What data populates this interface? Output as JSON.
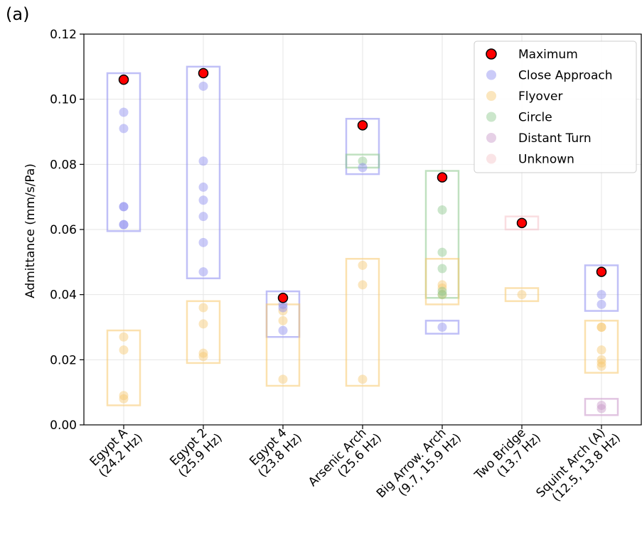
{
  "panel_label": "(a)",
  "chart_data": {
    "type": "scatter",
    "title": "",
    "xlabel": "",
    "ylabel": "Admittance (mm/s/Pa)",
    "ylim": [
      0,
      0.12
    ],
    "yticks": [
      "0.00",
      "0.02",
      "0.04",
      "0.06",
      "0.08",
      "0.10",
      "0.12"
    ],
    "grid": true,
    "legend_position": "top-right",
    "categories": [
      {
        "line1": "Egypt A",
        "line2": "(24.2 Hz)"
      },
      {
        "line1": "Egypt 2",
        "line2": "(25.9 Hz)"
      },
      {
        "line1": "Egypt 4",
        "line2": "(23.8 Hz)"
      },
      {
        "line1": "Arsenic Arch",
        "line2": "(25.6 Hz)"
      },
      {
        "line1": "Big Arrow. Arch",
        "line2": "(9.7, 15.9 Hz)"
      },
      {
        "line1": "Two Bridge",
        "line2": "(13.7 Hz)"
      },
      {
        "line1": "Squint Arch (A)",
        "line2": "(12.5, 13.8 Hz)"
      }
    ],
    "series": [
      {
        "name": "Maximum",
        "color": "#ff0000",
        "marker": "max",
        "points": [
          [
            0,
            0.106
          ],
          [
            1,
            0.108
          ],
          [
            2,
            0.039
          ],
          [
            3,
            0.092
          ],
          [
            4,
            0.076
          ],
          [
            5,
            0.062
          ],
          [
            6,
            0.047
          ]
        ]
      },
      {
        "name": "Close Approach",
        "color": "#8c8cf0",
        "marker": "dot",
        "points": [
          [
            0,
            0.096
          ],
          [
            0,
            0.091
          ],
          [
            0,
            0.067
          ],
          [
            0,
            0.067
          ],
          [
            0,
            0.0615
          ],
          [
            0,
            0.0615
          ],
          [
            1,
            0.104
          ],
          [
            1,
            0.081
          ],
          [
            1,
            0.073
          ],
          [
            1,
            0.069
          ],
          [
            1,
            0.064
          ],
          [
            1,
            0.056
          ],
          [
            1,
            0.047
          ],
          [
            2,
            0.037
          ],
          [
            2,
            0.036
          ],
          [
            2,
            0.029
          ],
          [
            3,
            0.079
          ],
          [
            4,
            0.03
          ],
          [
            6,
            0.04
          ],
          [
            6,
            0.037
          ]
        ]
      },
      {
        "name": "Flyover",
        "color": "#f7c86e",
        "marker": "dot",
        "points": [
          [
            0,
            0.027
          ],
          [
            0,
            0.023
          ],
          [
            0,
            0.009
          ],
          [
            0,
            0.008
          ],
          [
            1,
            0.036
          ],
          [
            1,
            0.031
          ],
          [
            1,
            0.022
          ],
          [
            1,
            0.021
          ],
          [
            2,
            0.035
          ],
          [
            2,
            0.032
          ],
          [
            2,
            0.014
          ],
          [
            3,
            0.049
          ],
          [
            3,
            0.043
          ],
          [
            3,
            0.014
          ],
          [
            4,
            0.043
          ],
          [
            4,
            0.042
          ],
          [
            4,
            0.04
          ],
          [
            5,
            0.04
          ],
          [
            6,
            0.03
          ],
          [
            6,
            0.03
          ],
          [
            6,
            0.023
          ],
          [
            6,
            0.02
          ],
          [
            6,
            0.019
          ],
          [
            6,
            0.018
          ]
        ]
      },
      {
        "name": "Circle",
        "color": "#8cc88c",
        "marker": "dot",
        "points": [
          [
            3,
            0.081
          ],
          [
            4,
            0.066
          ],
          [
            4,
            0.053
          ],
          [
            4,
            0.048
          ],
          [
            4,
            0.041
          ],
          [
            4,
            0.04
          ]
        ]
      },
      {
        "name": "Distant Turn",
        "color": "#c896c8",
        "marker": "dot",
        "points": [
          [
            6,
            0.006
          ],
          [
            6,
            0.005
          ]
        ]
      },
      {
        "name": "Unknown",
        "color": "#f5c3c8",
        "marker": "dot",
        "points": [
          [
            5,
            0.062
          ]
        ]
      }
    ],
    "ranges": [
      {
        "category": 0,
        "series": "Close Approach",
        "min": 0.0595,
        "max": 0.108
      },
      {
        "category": 0,
        "series": "Flyover",
        "min": 0.006,
        "max": 0.029
      },
      {
        "category": 1,
        "series": "Close Approach",
        "min": 0.045,
        "max": 0.11
      },
      {
        "category": 1,
        "series": "Flyover",
        "min": 0.019,
        "max": 0.038
      },
      {
        "category": 2,
        "series": "Close Approach",
        "min": 0.027,
        "max": 0.041
      },
      {
        "category": 2,
        "series": "Flyover",
        "min": 0.012,
        "max": 0.037
      },
      {
        "category": 3,
        "series": "Close Approach",
        "min": 0.077,
        "max": 0.094
      },
      {
        "category": 3,
        "series": "Circle",
        "min": 0.079,
        "max": 0.083
      },
      {
        "category": 3,
        "series": "Flyover",
        "min": 0.012,
        "max": 0.051
      },
      {
        "category": 4,
        "series": "Circle",
        "min": 0.039,
        "max": 0.078
      },
      {
        "category": 4,
        "series": "Flyover",
        "min": 0.037,
        "max": 0.051
      },
      {
        "category": 4,
        "series": "Close Approach",
        "min": 0.028,
        "max": 0.032
      },
      {
        "category": 5,
        "series": "Unknown",
        "min": 0.06,
        "max": 0.064
      },
      {
        "category": 5,
        "series": "Flyover",
        "min": 0.038,
        "max": 0.042
      },
      {
        "category": 6,
        "series": "Close Approach",
        "min": 0.035,
        "max": 0.049
      },
      {
        "category": 6,
        "series": "Flyover",
        "min": 0.016,
        "max": 0.032
      },
      {
        "category": 6,
        "series": "Distant Turn",
        "min": 0.003,
        "max": 0.008
      }
    ]
  }
}
